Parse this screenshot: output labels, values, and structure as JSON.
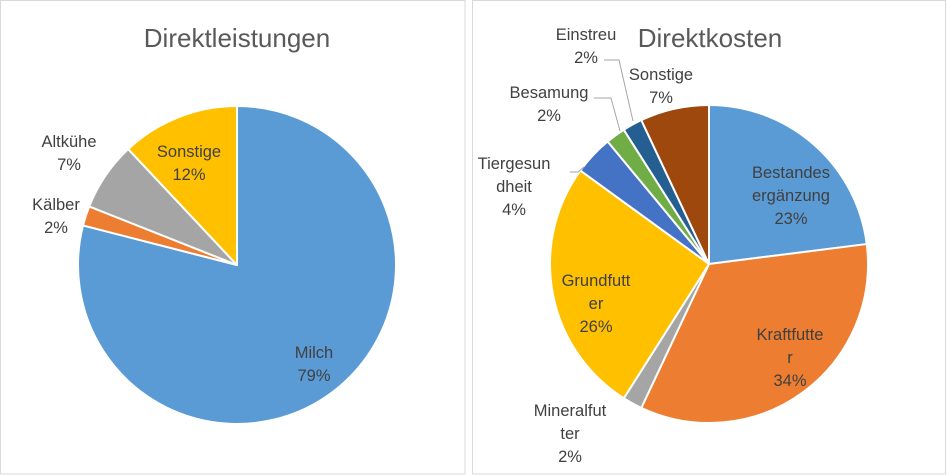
{
  "chart_data": [
    {
      "type": "pie",
      "title": "Direktleistungen",
      "slices": [
        {
          "label": [
            "Milch"
          ],
          "value": 79,
          "pct_label": "79%",
          "color": "#5b9bd5"
        },
        {
          "label": [
            "Kälber"
          ],
          "value": 2,
          "pct_label": "2%",
          "color": "#ed7d31"
        },
        {
          "label": [
            "Altkühe"
          ],
          "value": 7,
          "pct_label": "7%",
          "color": "#a5a5a5"
        },
        {
          "label": [
            "Sonstige"
          ],
          "value": 12,
          "pct_label": "12%",
          "color": "#ffc000"
        }
      ]
    },
    {
      "type": "pie",
      "title": "Direktkosten",
      "slices": [
        {
          "label": [
            "Bestandes",
            "ergänzung"
          ],
          "value": 23,
          "pct_label": "23%",
          "color": "#5b9bd5"
        },
        {
          "label": [
            "Kraftfutte",
            "r"
          ],
          "value": 34,
          "pct_label": "34%",
          "color": "#ed7d31"
        },
        {
          "label": [
            "Mineralfut",
            "ter"
          ],
          "value": 2,
          "pct_label": "2%",
          "color": "#a5a5a5"
        },
        {
          "label": [
            "Grundfutt",
            "er"
          ],
          "value": 26,
          "pct_label": "26%",
          "color": "#ffc000"
        },
        {
          "label": [
            "Tiergesun",
            "dheit"
          ],
          "value": 4,
          "pct_label": "4%",
          "color": "#4472c4"
        },
        {
          "label": [
            "Besamung"
          ],
          "value": 2,
          "pct_label": "2%",
          "color": "#70ad47"
        },
        {
          "label": [
            "Einstreu"
          ],
          "value": 2,
          "pct_label": "2%",
          "color": "#255e91"
        },
        {
          "label": [
            "Sonstige"
          ],
          "value": 7,
          "pct_label": "7%",
          "color": "#9e480e"
        }
      ]
    }
  ]
}
